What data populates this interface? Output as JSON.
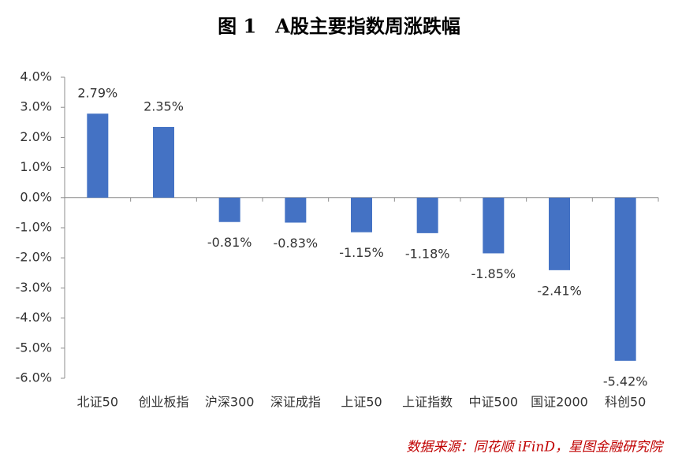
{
  "chart_data": {
    "type": "bar",
    "title": "图 1　A股主要指数周涨跌幅",
    "categories": [
      "北证50",
      "创业板指",
      "沪深300",
      "深证成指",
      "上证50",
      "上证指数",
      "中证500",
      "国证2000",
      "科创50"
    ],
    "values": [
      2.79,
      2.35,
      -0.81,
      -0.83,
      -1.15,
      -1.18,
      -1.85,
      -2.41,
      -5.42
    ],
    "value_labels": [
      "2.79%",
      "2.35%",
      "-0.81%",
      "-0.83%",
      "-1.15%",
      "-1.18%",
      "-1.85%",
      "-2.41%",
      "-5.42%"
    ],
    "color": "#4472c4",
    "ylim": [
      -6,
      4
    ],
    "yticks": [
      {
        "value": 4,
        "label": "4.0%"
      },
      {
        "value": 3,
        "label": "3.0%"
      },
      {
        "value": 2,
        "label": "2.0%"
      },
      {
        "value": 1,
        "label": "1.0%"
      },
      {
        "value": 0,
        "label": "0.0%"
      },
      {
        "value": -1,
        "label": "-1.0%"
      },
      {
        "value": -2,
        "label": "-2.0%"
      },
      {
        "value": -3,
        "label": "-3.0%"
      },
      {
        "value": -4,
        "label": "-4.0%"
      },
      {
        "value": -5,
        "label": "-5.0%"
      },
      {
        "value": -6,
        "label": "-6.0%"
      }
    ],
    "grid": false,
    "source": "数据来源：同花顺 iFinD，星图金融研究院"
  }
}
